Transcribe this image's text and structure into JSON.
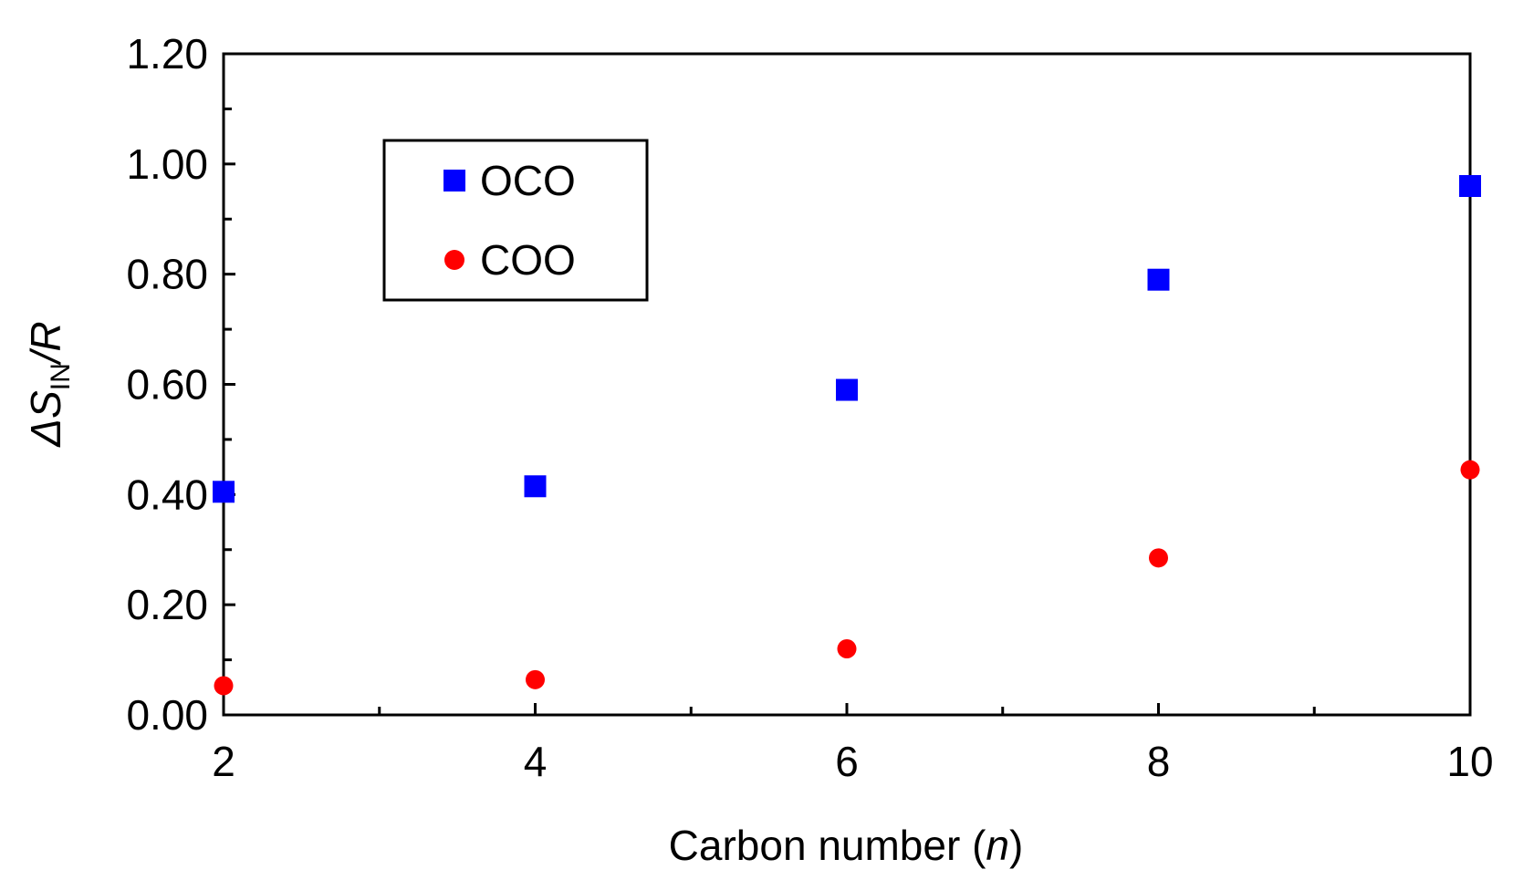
{
  "chart_data": {
    "type": "scatter",
    "title": "",
    "xlabel_prefix": "Carbon number (",
    "xlabel_var": "n",
    "xlabel_suffix": ")",
    "ylabel_delta": "ΔS",
    "ylabel_sub": "IN",
    "ylabel_tail": "/R",
    "xlim": [
      2,
      10
    ],
    "ylim": [
      0,
      1.2
    ],
    "x_ticks": [
      2,
      4,
      6,
      8,
      10
    ],
    "y_ticks": [
      0,
      0.2,
      0.4,
      0.6,
      0.8,
      1.0,
      1.2
    ],
    "y_tick_labels": [
      "0.00",
      "0.20",
      "0.40",
      "0.60",
      "0.80",
      "1.00",
      "1.20"
    ],
    "grid": false,
    "legend_position": "top-left",
    "series": [
      {
        "name": "OCO",
        "marker": "square",
        "color": "#0000ff",
        "x": [
          2,
          4,
          6,
          8,
          10
        ],
        "y": [
          0.405,
          0.415,
          0.59,
          0.79,
          0.96
        ]
      },
      {
        "name": "COO",
        "marker": "circle",
        "color": "#ff0000",
        "x": [
          2,
          4,
          6,
          8,
          10
        ],
        "y": [
          0.053,
          0.064,
          0.12,
          0.285,
          0.445
        ]
      }
    ]
  }
}
